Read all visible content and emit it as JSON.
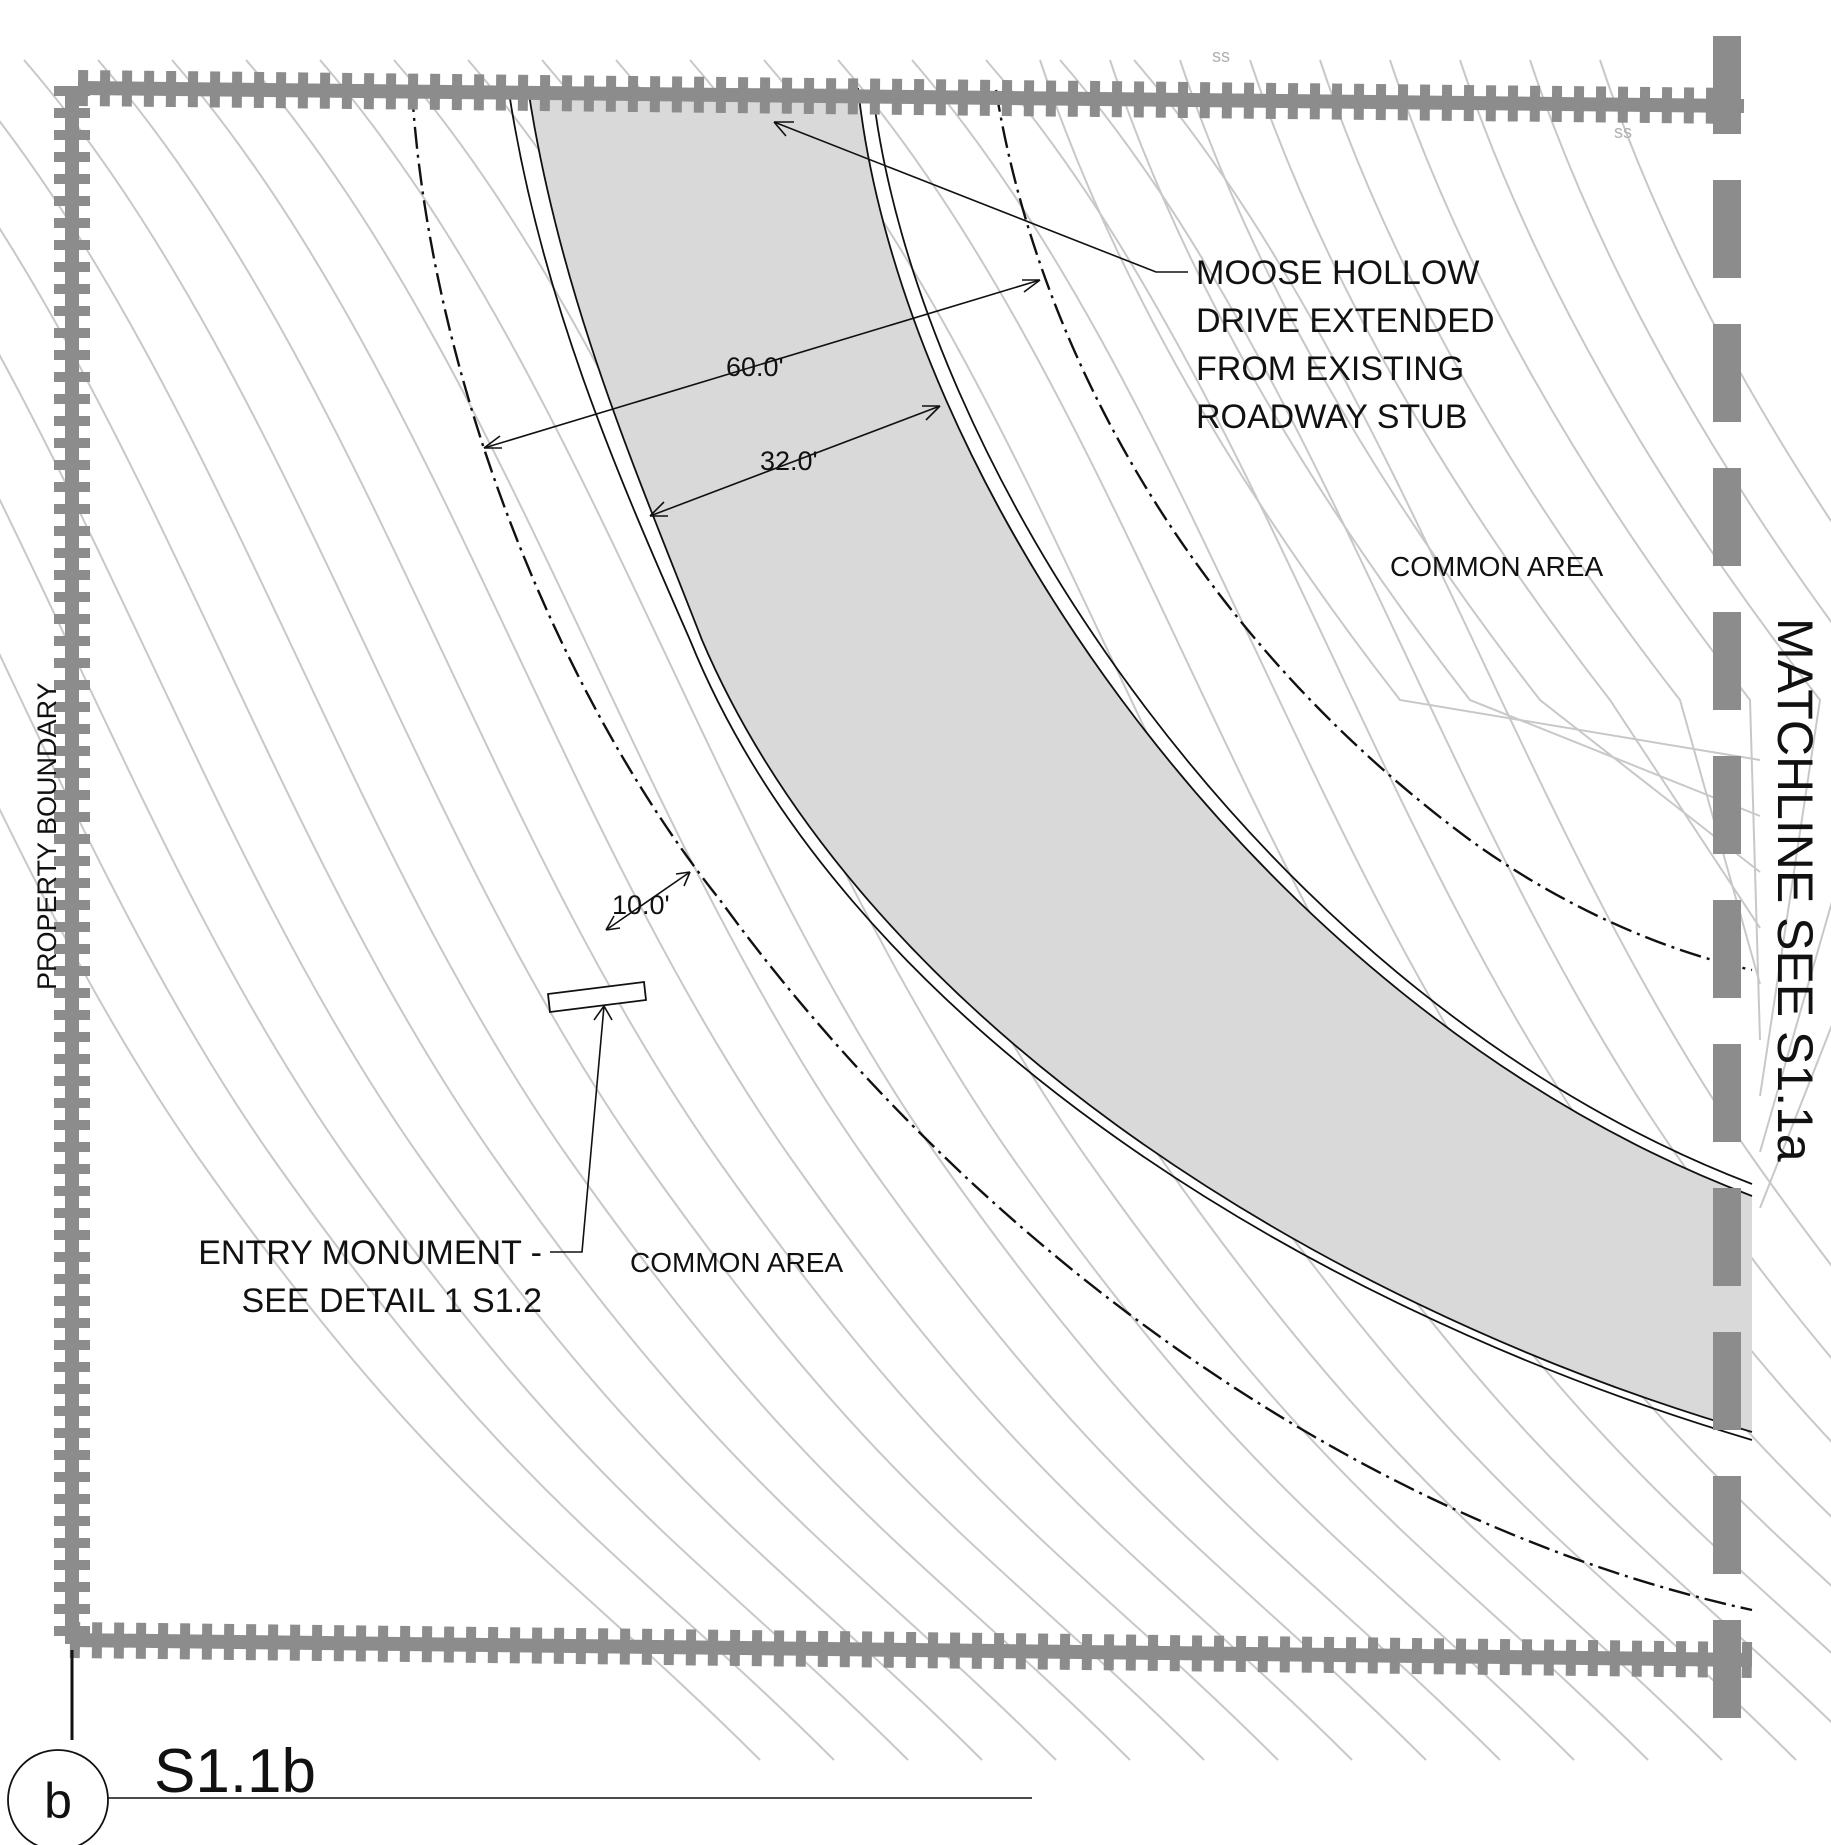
{
  "labels": {
    "road_name_lines": [
      "MOOSE HOLLOW",
      "DRIVE EXTENDED",
      "FROM EXISTING",
      "ROADWAY STUB"
    ],
    "row_width": "60.0'",
    "pavement_width": "32.0'",
    "setback": "10.0'",
    "common_area_east": "COMMON AREA",
    "common_area_south": "COMMON AREA",
    "entry_monument_lines": [
      "ENTRY MONUMENT -",
      "SEE DETAIL 1 S1.2"
    ],
    "property_boundary": "PROPERTY BOUNDARY",
    "matchline": "MATCHLINE SEE S1.1a",
    "sheet_id": "S1.1b",
    "detail_tag": "b",
    "utility_label": "ss"
  },
  "colors": {
    "boundary": "#8c8c8c",
    "contour": "#c8c8c8",
    "pavement": "#d9d9d9",
    "linework": "#111111"
  }
}
